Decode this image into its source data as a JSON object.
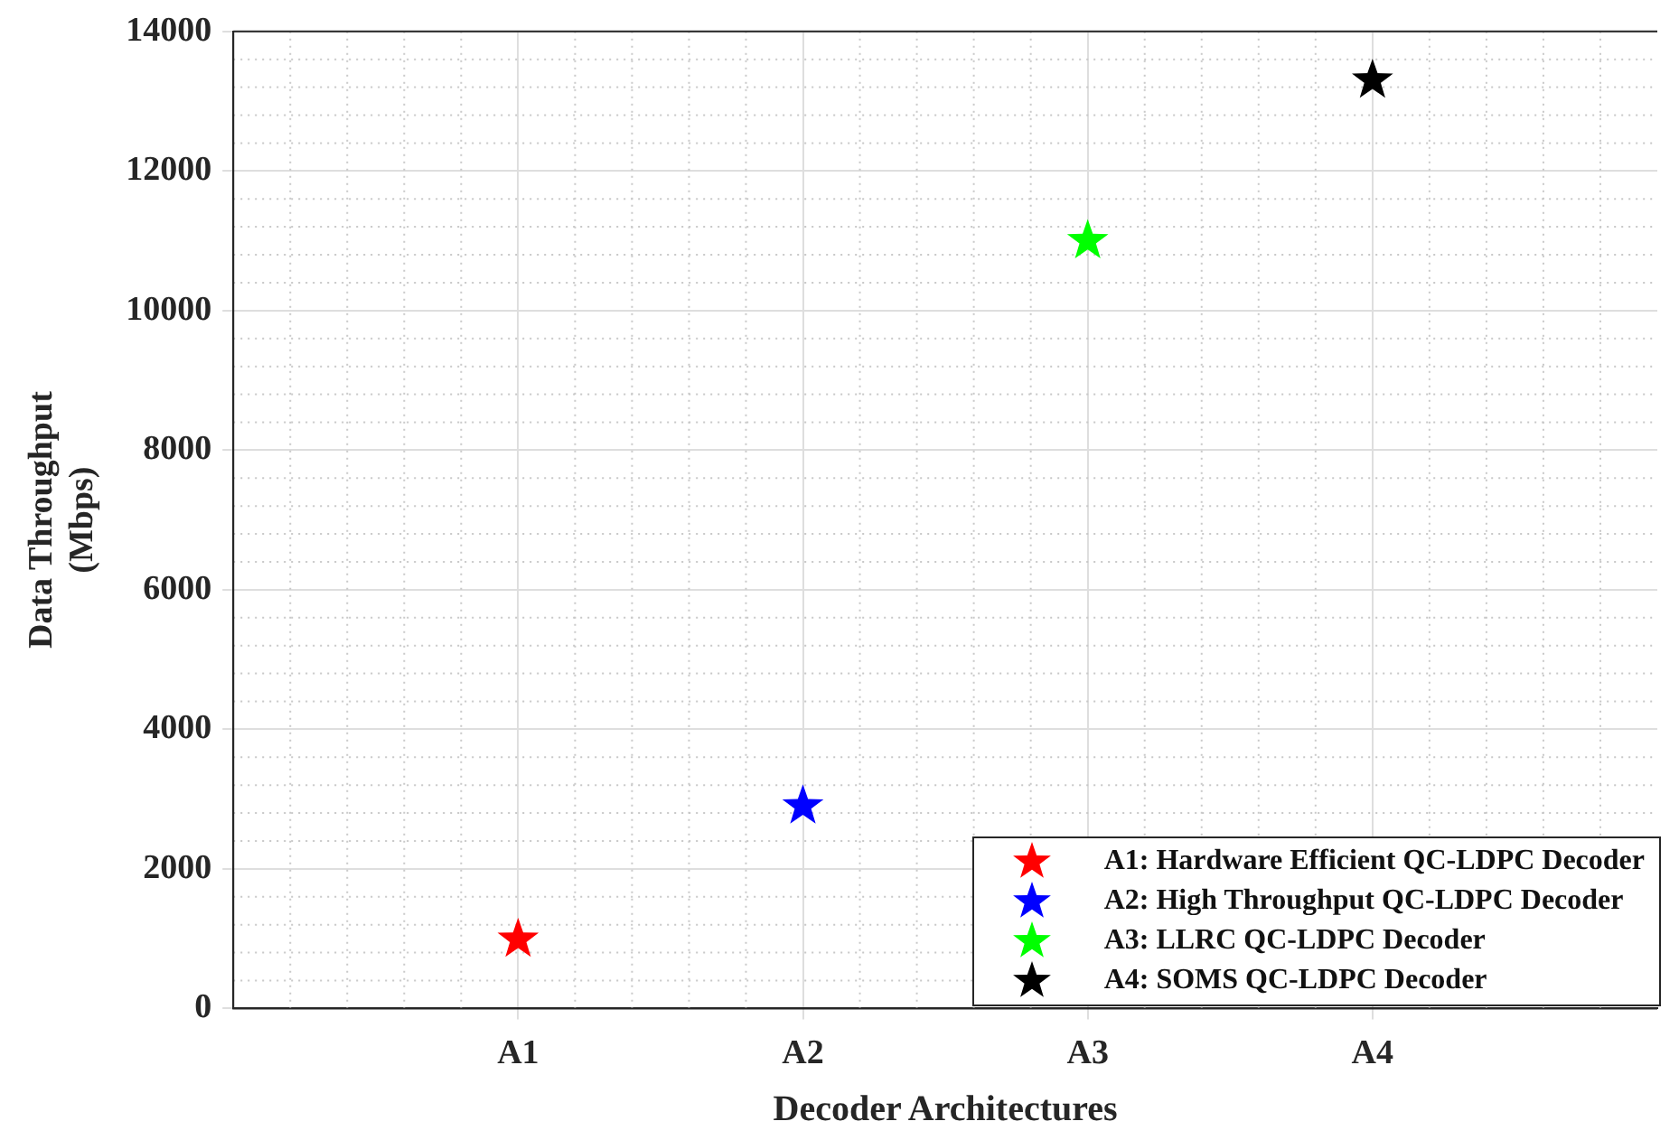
{
  "chart_data": {
    "type": "scatter",
    "xlabel": "Decoder Architectures",
    "ylabel": "Data Throughput\n(Mbps)",
    "categories": [
      "A1",
      "A2",
      "A3",
      "A4"
    ],
    "series": [
      {
        "name": "A1: Hardware Efficient QC-LDPC Decoder",
        "color": "#ff0000",
        "values": [
          990,
          null,
          null,
          null
        ]
      },
      {
        "name": "A2: High Throughput QC-LDPC Decoder",
        "color": "#0000ff",
        "values": [
          null,
          2900,
          null,
          null
        ]
      },
      {
        "name": "A3: LLRC QC-LDPC Decoder",
        "color": "#00ff00",
        "values": [
          null,
          null,
          11000,
          null
        ]
      },
      {
        "name": "A4: SOMS QC-LDPC Decoder",
        "color": "#000000",
        "values": [
          null,
          null,
          null,
          13300
        ]
      }
    ],
    "ylim": [
      0,
      14000
    ],
    "yticks": [
      0,
      2000,
      4000,
      6000,
      8000,
      10000,
      12000,
      14000
    ],
    "grid": true,
    "legend": "bottom right",
    "marker": "star"
  }
}
